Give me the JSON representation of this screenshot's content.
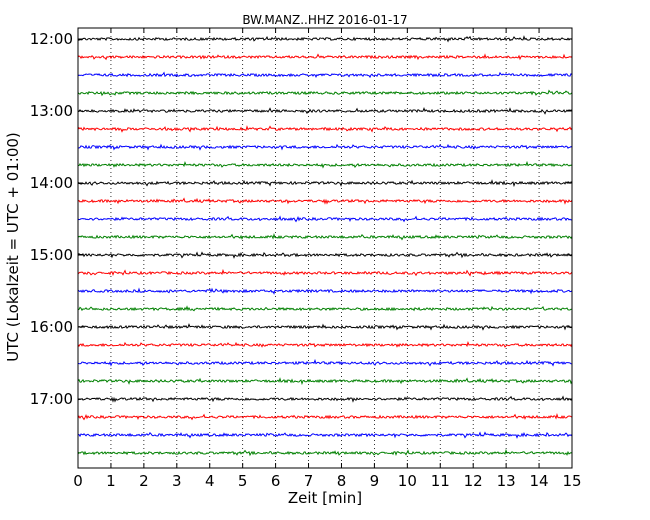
{
  "chart_data": {
    "type": "line",
    "title": "BW.MANZ..HHZ 2016-01-17",
    "xlabel": "Zeit  [min]",
    "ylabel": "UTC (Lokalzeit = UTC + 01:00)",
    "xlim": [
      0,
      15
    ],
    "x_ticks": [
      "0",
      "1",
      "2",
      "3",
      "4",
      "5",
      "6",
      "7",
      "8",
      "9",
      "10",
      "11",
      "12",
      "13",
      "14",
      "15"
    ],
    "y_tick_labels": [
      "12:00",
      "13:00",
      "14:00",
      "15:00",
      "16:00",
      "17:00"
    ],
    "grid": "vertical dotted",
    "trace_interval_minutes": 15,
    "trace_start_times": [
      "12:00",
      "12:15",
      "12:30",
      "12:45",
      "13:00",
      "13:15",
      "13:30",
      "13:45",
      "14:00",
      "14:15",
      "14:30",
      "14:45",
      "15:00",
      "15:15",
      "15:30",
      "15:45",
      "16:00",
      "16:15",
      "16:30",
      "16:45",
      "17:00",
      "17:15",
      "17:30",
      "17:45"
    ],
    "series_colors": [
      "#000000",
      "#ff0000",
      "#0000ff",
      "#008000"
    ]
  }
}
